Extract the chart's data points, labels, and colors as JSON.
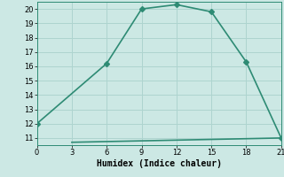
{
  "line1_x": [
    0,
    6,
    9,
    12,
    15,
    18,
    21
  ],
  "line1_y": [
    12,
    16.2,
    20,
    20.3,
    19.8,
    16.3,
    11
  ],
  "line2_x": [
    3,
    21
  ],
  "line2_y": [
    10.7,
    11
  ],
  "line_color": "#2e8b74",
  "bg_color": "#cce8e4",
  "grid_color": "#aed4cf",
  "xlabel": "Humidex (Indice chaleur)",
  "xlim": [
    0,
    21
  ],
  "ylim": [
    10.5,
    20.5
  ],
  "xticks": [
    0,
    3,
    6,
    9,
    12,
    15,
    18,
    21
  ],
  "yticks": [
    11,
    12,
    13,
    14,
    15,
    16,
    17,
    18,
    19,
    20
  ],
  "marker": "D",
  "markersize": 3,
  "linewidth": 1.2,
  "label_fontsize": 7,
  "tick_fontsize": 6
}
